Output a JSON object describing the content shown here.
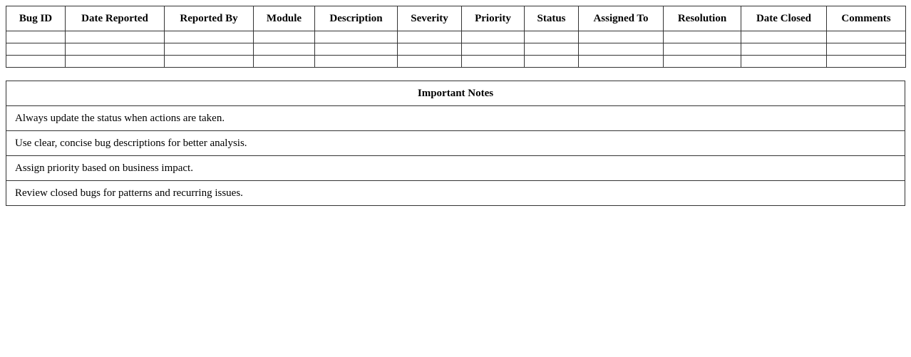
{
  "bug_table": {
    "headers": [
      "Bug ID",
      "Date Reported",
      "Reported By",
      "Module",
      "Description",
      "Severity",
      "Priority",
      "Status",
      "Assigned To",
      "Resolution",
      "Date Closed",
      "Comments"
    ],
    "rows": [
      [
        "",
        "",
        "",
        "",
        "",
        "",
        "",
        "",
        "",
        "",
        "",
        ""
      ],
      [
        "",
        "",
        "",
        "",
        "",
        "",
        "",
        "",
        "",
        "",
        "",
        ""
      ],
      [
        "",
        "",
        "",
        "",
        "",
        "",
        "",
        "",
        "",
        "",
        "",
        ""
      ]
    ]
  },
  "notes": {
    "title": "Important Notes",
    "items": [
      "Always update the status when actions are taken.",
      "Use clear, concise bug descriptions for better analysis.",
      "Assign priority based on business impact.",
      "Review closed bugs for patterns and recurring issues."
    ]
  }
}
